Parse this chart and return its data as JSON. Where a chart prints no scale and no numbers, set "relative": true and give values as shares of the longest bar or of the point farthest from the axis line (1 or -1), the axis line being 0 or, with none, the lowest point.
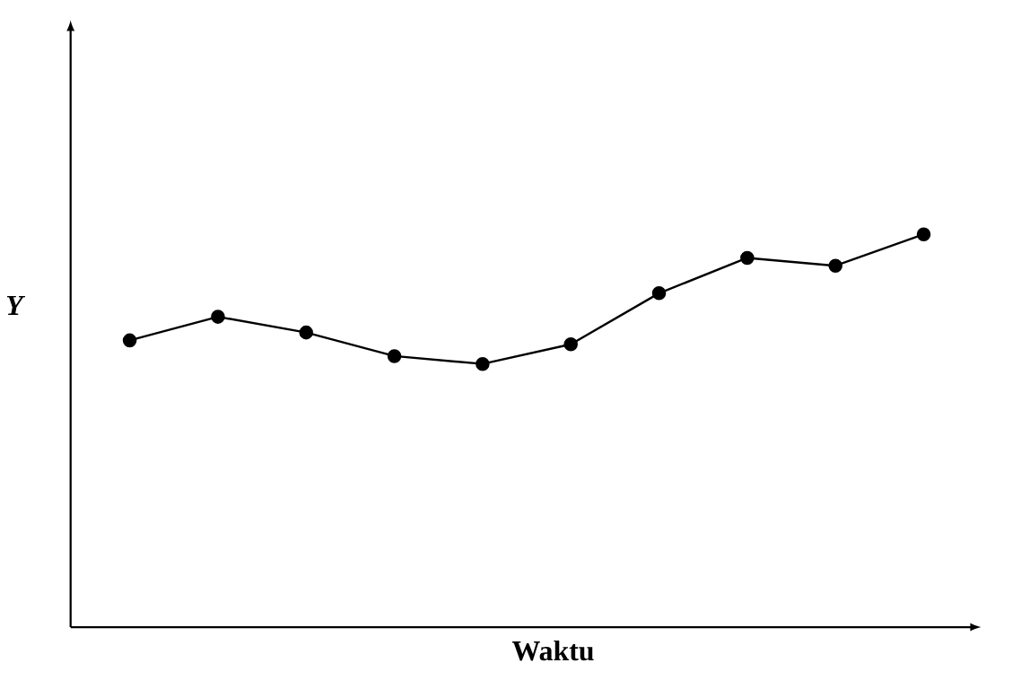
{
  "chart_data": {
    "type": "line",
    "relative": true,
    "xlabel": "Waktu",
    "ylabel": "Y",
    "marker": "circle",
    "categories": [
      null,
      null,
      null,
      null,
      null,
      null,
      null,
      null,
      null,
      null
    ],
    "series": [
      {
        "color": "#000000",
        "values": [
          0.73,
          0.79,
          0.75,
          0.69,
          0.67,
          0.72,
          0.85,
          0.94,
          0.92,
          1
        ]
      }
    ]
  }
}
